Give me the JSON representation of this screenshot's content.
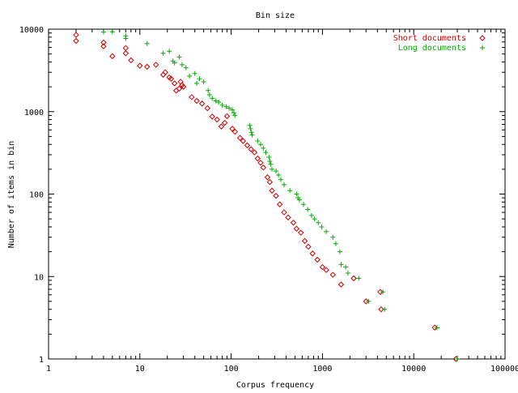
{
  "chart_data": {
    "type": "scatter",
    "title": "Bin size",
    "xlabel": "Corpus frequency",
    "ylabel": "Number of items in bin",
    "x_scale": "log",
    "y_scale": "log",
    "xlim": [
      1,
      100000
    ],
    "ylim": [
      1,
      10000
    ],
    "grid": false,
    "legend_position": "top-right",
    "x_ticks": [
      1,
      10,
      100,
      1000,
      10000,
      100000
    ],
    "x_tick_labels": [
      "1",
      "10",
      "100",
      "1000",
      "10000",
      "100000"
    ],
    "y_ticks": [
      1,
      10,
      100,
      1000,
      10000
    ],
    "y_tick_labels": [
      "1",
      "10",
      "100",
      "1000",
      "10000"
    ],
    "series": [
      {
        "name": "Short documents",
        "marker": "diamond",
        "color": "#cc0000",
        "points": [
          [
            2,
            8500
          ],
          [
            2,
            7200
          ],
          [
            4,
            6900
          ],
          [
            4,
            6200
          ],
          [
            5,
            4700
          ],
          [
            7,
            5900
          ],
          [
            7,
            5100
          ],
          [
            8,
            4200
          ],
          [
            10,
            3600
          ],
          [
            12,
            3500
          ],
          [
            15,
            3700
          ],
          [
            18,
            2800
          ],
          [
            19,
            3000
          ],
          [
            21,
            2600
          ],
          [
            22,
            2500
          ],
          [
            24,
            2200
          ],
          [
            25,
            1800
          ],
          [
            27,
            1900
          ],
          [
            28,
            2300
          ],
          [
            29,
            2100
          ],
          [
            30,
            2000
          ],
          [
            37,
            1500
          ],
          [
            42,
            1350
          ],
          [
            48,
            1250
          ],
          [
            55,
            1100
          ],
          [
            62,
            870
          ],
          [
            70,
            800
          ],
          [
            78,
            660
          ],
          [
            85,
            730
          ],
          [
            90,
            880
          ],
          [
            103,
            620
          ],
          [
            110,
            570
          ],
          [
            125,
            480
          ],
          [
            135,
            440
          ],
          [
            150,
            390
          ],
          [
            165,
            350
          ],
          [
            180,
            320
          ],
          [
            195,
            270
          ],
          [
            210,
            240
          ],
          [
            225,
            210
          ],
          [
            250,
            160
          ],
          [
            265,
            140
          ],
          [
            280,
            110
          ],
          [
            310,
            95
          ],
          [
            340,
            75
          ],
          [
            380,
            60
          ],
          [
            420,
            52
          ],
          [
            480,
            45
          ],
          [
            520,
            38
          ],
          [
            580,
            34
          ],
          [
            640,
            27
          ],
          [
            700,
            23
          ],
          [
            780,
            19
          ],
          [
            880,
            16
          ],
          [
            1000,
            13
          ],
          [
            1100,
            12
          ],
          [
            1300,
            10.5
          ],
          [
            1600,
            8
          ],
          [
            2200,
            9.5
          ],
          [
            3000,
            5
          ],
          [
            4300,
            6.5
          ],
          [
            4400,
            4
          ],
          [
            17000,
            2.4
          ],
          [
            29000,
            1
          ]
        ]
      },
      {
        "name": "Long documents",
        "marker": "plus",
        "color": "#00aa00",
        "points": [
          [
            4,
            9200
          ],
          [
            5,
            9300
          ],
          [
            7,
            8300
          ],
          [
            7,
            7700
          ],
          [
            12,
            6700
          ],
          [
            18,
            5100
          ],
          [
            21,
            5400
          ],
          [
            23,
            4100
          ],
          [
            24,
            3900
          ],
          [
            27,
            4600
          ],
          [
            29,
            3700
          ],
          [
            32,
            3400
          ],
          [
            35,
            2700
          ],
          [
            40,
            2900
          ],
          [
            42,
            2200
          ],
          [
            45,
            2500
          ],
          [
            50,
            2300
          ],
          [
            56,
            1800
          ],
          [
            58,
            1600
          ],
          [
            62,
            1450
          ],
          [
            68,
            1350
          ],
          [
            73,
            1300
          ],
          [
            80,
            1200
          ],
          [
            88,
            1150
          ],
          [
            95,
            1100
          ],
          [
            103,
            1050
          ],
          [
            107,
            970
          ],
          [
            110,
            900
          ],
          [
            160,
            680
          ],
          [
            163,
            620
          ],
          [
            167,
            560
          ],
          [
            170,
            520
          ],
          [
            195,
            440
          ],
          [
            210,
            400
          ],
          [
            225,
            360
          ],
          [
            240,
            320
          ],
          [
            260,
            280
          ],
          [
            265,
            250
          ],
          [
            272,
            230
          ],
          [
            280,
            200
          ],
          [
            310,
            190
          ],
          [
            330,
            170
          ],
          [
            350,
            150
          ],
          [
            380,
            130
          ],
          [
            440,
            110
          ],
          [
            520,
            100
          ],
          [
            540,
            90
          ],
          [
            560,
            85
          ],
          [
            620,
            75
          ],
          [
            690,
            65
          ],
          [
            760,
            55
          ],
          [
            820,
            50
          ],
          [
            900,
            45
          ],
          [
            980,
            40
          ],
          [
            1100,
            35
          ],
          [
            1300,
            30
          ],
          [
            1400,
            25
          ],
          [
            1550,
            20
          ],
          [
            1600,
            14
          ],
          [
            1800,
            13
          ],
          [
            1900,
            11
          ],
          [
            2500,
            9.5
          ],
          [
            3200,
            5
          ],
          [
            4600,
            6.5
          ],
          [
            4800,
            4
          ],
          [
            18000,
            2.4
          ],
          [
            30000,
            1
          ]
        ]
      }
    ]
  }
}
